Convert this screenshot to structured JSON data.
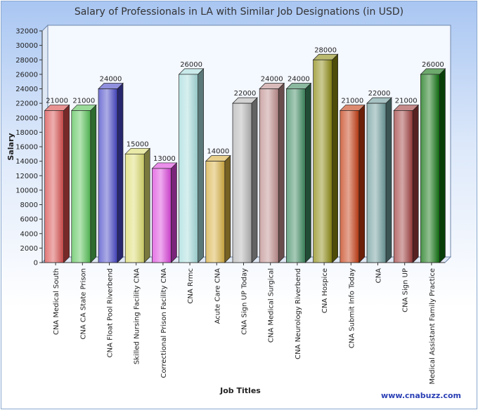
{
  "chart_data": {
    "type": "bar",
    "title": "Salary of Professionals in LA with Similar Job Designations (in USD)",
    "xlabel": "Job Titles",
    "ylabel": "Salary",
    "ylim": [
      0,
      32000
    ],
    "ytick_step": 2000,
    "grid": false,
    "categories": [
      "CNA Medical South",
      "CNA CA State Prison",
      "CNA Float Pool Riverbend",
      "Skilled Nursing Facility CNA",
      "Correctional Prison Facility CNA",
      "CNA Rrmc",
      "Acute Care CNA",
      "CNA Sign UP Today",
      "CNA Medical Surgical",
      "CNA Neurology Riverbend",
      "CNA Hospice",
      "CNA Submit Info Today",
      "CNA",
      "CNA Sign UP",
      "Medical Assistant Family Practice"
    ],
    "values": [
      21000,
      21000,
      24000,
      15000,
      13000,
      26000,
      14000,
      22000,
      24000,
      24000,
      28000,
      21000,
      22000,
      21000,
      26000
    ],
    "colors": [
      "#d84a4a",
      "#55c255",
      "#4646c8",
      "#dcdc6e",
      "#dc44dc",
      "#a6dcdc",
      "#d8b040",
      "#b4b4b4",
      "#be8c8c",
      "#3c8a60",
      "#8c8a10",
      "#c43a10",
      "#6c9a9a",
      "#a03c3c",
      "#0c700c"
    ]
  },
  "watermark": "www.cnabuzz.com"
}
